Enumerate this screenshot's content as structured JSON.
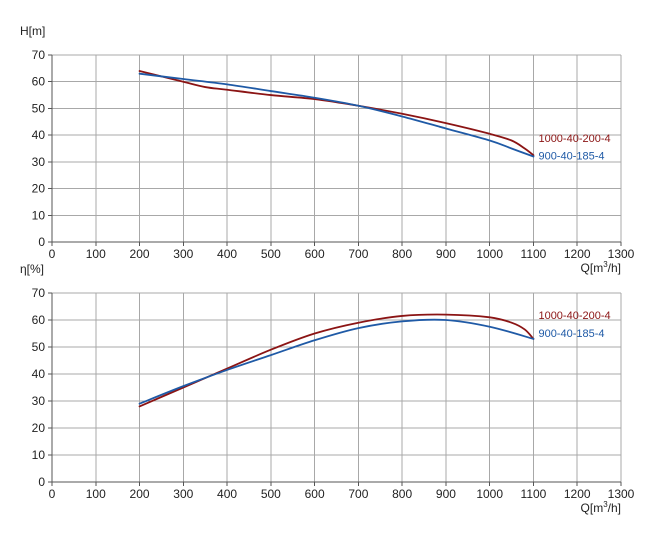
{
  "chart_data": [
    {
      "type": "line",
      "ylabel": "H[m]",
      "xlabel_base": "Q[m",
      "xlabel_sup": "3",
      "xlabel_tail": "/h]",
      "xlim": [
        0,
        1300
      ],
      "ylim": [
        0,
        70
      ],
      "xticks": [
        0,
        100,
        200,
        300,
        400,
        500,
        600,
        700,
        800,
        900,
        1000,
        1100,
        1200,
        1300
      ],
      "yticks": [
        0,
        10,
        20,
        30,
        40,
        50,
        60,
        70
      ],
      "grid": true,
      "series": [
        {
          "name": "1000-40-200-4",
          "color": "#8b1414",
          "x": [
            200,
            250,
            300,
            350,
            400,
            500,
            600,
            700,
            800,
            900,
            1000,
            1050,
            1080,
            1100
          ],
          "y": [
            64,
            62,
            60,
            58,
            57,
            55,
            53.5,
            51,
            48,
            44.5,
            40.5,
            38,
            35,
            32.5
          ]
        },
        {
          "name": "900-40-185-4",
          "color": "#1f5aa6",
          "x": [
            200,
            300,
            400,
            500,
            600,
            700,
            800,
            900,
            1000,
            1050,
            1100
          ],
          "y": [
            63,
            61,
            59,
            56.5,
            54,
            51,
            47,
            42.5,
            38,
            35,
            32
          ]
        }
      ]
    },
    {
      "type": "line",
      "ylabel": "η[%]",
      "xlabel_base": "Q[m",
      "xlabel_sup": "3",
      "xlabel_tail": "/h]",
      "xlim": [
        0,
        1300
      ],
      "ylim": [
        0,
        70
      ],
      "xticks": [
        0,
        100,
        200,
        300,
        400,
        500,
        600,
        700,
        800,
        900,
        1000,
        1100,
        1200,
        1300
      ],
      "yticks": [
        0,
        10,
        20,
        30,
        40,
        50,
        60,
        70
      ],
      "grid": true,
      "series": [
        {
          "name": "1000-40-200-4",
          "color": "#8b1414",
          "x": [
            200,
            300,
            400,
            500,
            600,
            700,
            800,
            900,
            1000,
            1050,
            1080,
            1100
          ],
          "y": [
            28,
            35,
            42,
            49,
            55,
            59,
            61.5,
            62,
            61,
            59,
            56.5,
            53
          ]
        },
        {
          "name": "900-40-185-4",
          "color": "#1f5aa6",
          "x": [
            200,
            300,
            400,
            500,
            600,
            700,
            800,
            900,
            1000,
            1100
          ],
          "y": [
            29,
            35.5,
            41.5,
            47,
            52.5,
            57,
            59.5,
            60,
            57.5,
            53
          ]
        }
      ]
    }
  ]
}
